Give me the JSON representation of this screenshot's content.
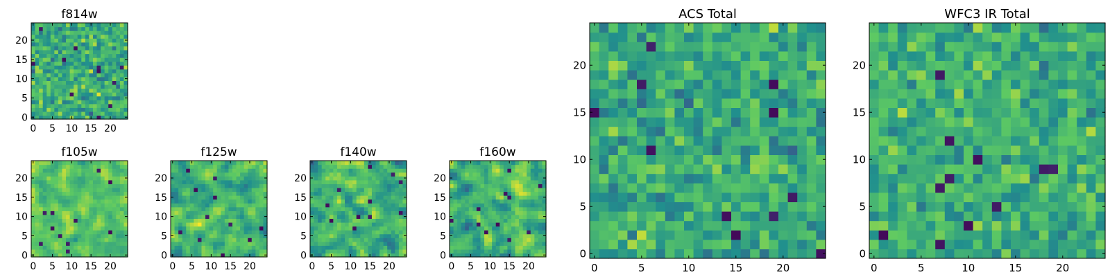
{
  "colormap": {
    "name": "viridis",
    "stops": [
      "#440154",
      "#3b528b",
      "#21908d",
      "#5dc963",
      "#fde725"
    ]
  },
  "chart_data": [
    {
      "id": "f814w",
      "type": "heatmap",
      "title": "f814w",
      "grid_size": 25,
      "clim": [
        0,
        1
      ],
      "mean": 0.62,
      "spread": 0.22,
      "smooth": 0,
      "seed": 11,
      "xticks": [
        0,
        5,
        10,
        15,
        20
      ],
      "yticks": [
        0,
        5,
        10,
        15,
        20
      ]
    },
    {
      "id": "f105w",
      "type": "heatmap",
      "title": "f105w",
      "grid_size": 25,
      "clim": [
        0,
        1
      ],
      "mean": 0.72,
      "spread": 0.18,
      "smooth": 1,
      "seed": 23,
      "xticks": [
        0,
        5,
        10,
        15,
        20
      ],
      "yticks": [
        0,
        5,
        10,
        15,
        20
      ]
    },
    {
      "id": "f125w",
      "type": "heatmap",
      "title": "f125w",
      "grid_size": 25,
      "clim": [
        0,
        1
      ],
      "mean": 0.66,
      "spread": 0.22,
      "smooth": 1,
      "seed": 37,
      "xticks": [
        0,
        5,
        10,
        15,
        20
      ],
      "yticks": [
        0,
        5,
        10,
        15,
        20
      ]
    },
    {
      "id": "f140w",
      "type": "heatmap",
      "title": "f140w",
      "grid_size": 25,
      "clim": [
        0,
        1
      ],
      "mean": 0.64,
      "spread": 0.24,
      "smooth": 1,
      "seed": 41,
      "xticks": [
        0,
        5,
        10,
        15,
        20
      ],
      "yticks": [
        0,
        5,
        10,
        15,
        20
      ]
    },
    {
      "id": "f160w",
      "type": "heatmap",
      "title": "f160w",
      "grid_size": 25,
      "clim": [
        0,
        1
      ],
      "mean": 0.66,
      "spread": 0.24,
      "smooth": 1,
      "seed": 53,
      "xticks": [
        0,
        5,
        10,
        15,
        20
      ],
      "yticks": [
        0,
        5,
        10,
        15,
        20
      ]
    },
    {
      "id": "acs-total",
      "type": "heatmap",
      "title": "ACS Total",
      "grid_size": 25,
      "clim": [
        0,
        1
      ],
      "mean": 0.62,
      "spread": 0.2,
      "smooth": 0,
      "seed": 67,
      "xticks": [
        0,
        5,
        10,
        15,
        20
      ],
      "yticks": [
        0,
        5,
        10,
        15,
        20
      ]
    },
    {
      "id": "wfc3-ir-total",
      "type": "heatmap",
      "title": "WFC3 IR Total",
      "grid_size": 25,
      "clim": [
        0,
        1
      ],
      "mean": 0.63,
      "spread": 0.19,
      "smooth": 0,
      "seed": 79,
      "xticks": [
        0,
        5,
        10,
        15,
        20
      ],
      "yticks": [
        0,
        5,
        10,
        15,
        20
      ]
    }
  ]
}
